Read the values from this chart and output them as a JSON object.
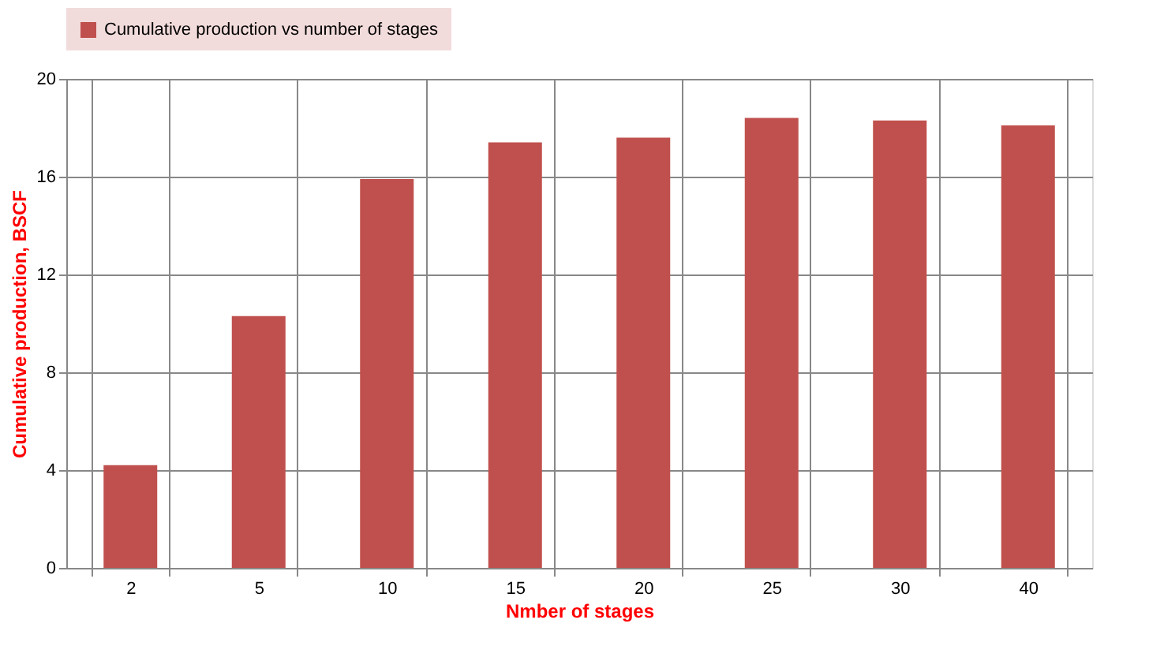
{
  "chart_data": {
    "type": "bar",
    "xlabel": "Nmber of stages",
    "ylabel": "Cumulative  production, BSCF",
    "categories": [
      "2",
      "5",
      "10",
      "15",
      "20",
      "25",
      "30",
      "40"
    ],
    "series": [
      {
        "name": "Cumulative production vs number of stages",
        "color": "#c0504d",
        "values": [
          4.2,
          10.3,
          15.9,
          17.4,
          17.6,
          18.4,
          18.3,
          18.1
        ]
      }
    ],
    "ylim": [
      0,
      20
    ],
    "yticks": [
      0,
      4,
      8,
      12,
      16,
      20
    ],
    "grid": true,
    "legend": "top"
  }
}
